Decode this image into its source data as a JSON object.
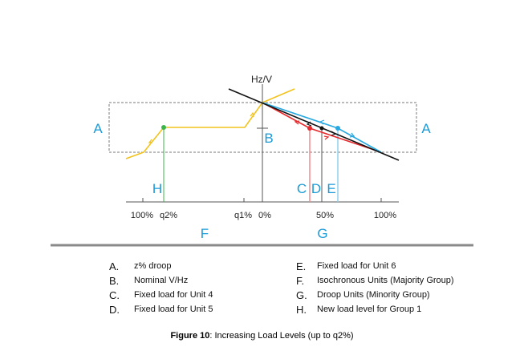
{
  "diagram": {
    "axis_label": "Hz/V",
    "ticks": [
      "100%",
      "q2%",
      "q1%",
      "0%",
      "50%",
      "100%"
    ],
    "markers": {
      "A_left": "A",
      "A_right": "A",
      "B": "B",
      "C": "C",
      "D": "D",
      "E": "E",
      "F": "F",
      "G": "G",
      "H": "H"
    },
    "colors": {
      "accent": "#1a9ad6",
      "yellow": "#f2c21b",
      "red": "#e8282b",
      "blue": "#27a8e0",
      "green": "#3bb54a"
    }
  },
  "legend": {
    "left": [
      {
        "letter": "A.",
        "text": "z% droop"
      },
      {
        "letter": "B.",
        "text": "Nominal V/Hz"
      },
      {
        "letter": "C.",
        "text": "Fixed load for Unit 4"
      },
      {
        "letter": "D.",
        "text": "Fixed load for Unit 5"
      }
    ],
    "right": [
      {
        "letter": "E.",
        "text": "Fixed load for Unit 6"
      },
      {
        "letter": "F.",
        "text": "Isochronous Units (Majority Group)"
      },
      {
        "letter": "G.",
        "text": "Droop Units (Minority Group)"
      },
      {
        "letter": "H.",
        "text": "New load level for Group 1"
      }
    ]
  },
  "caption": {
    "bold": "Figure 10",
    "rest": ": Increasing Load Levels (up to q2%)"
  }
}
